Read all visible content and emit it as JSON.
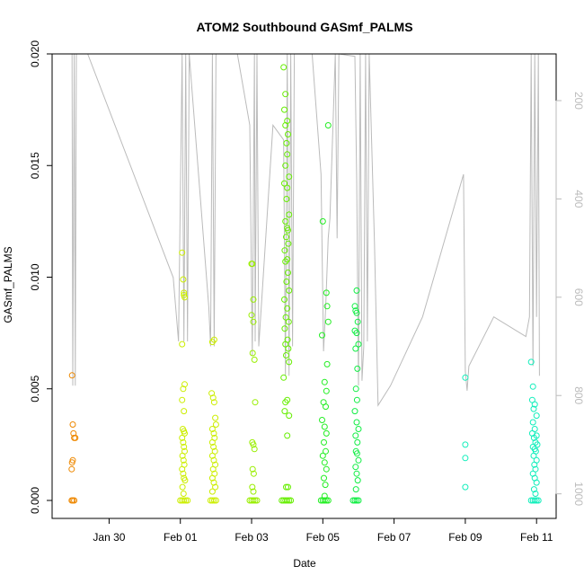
{
  "chart_data": {
    "type": "scatter",
    "title": "ATOM2 Southbound GASmf_PALMS",
    "xlabel": "Date",
    "ylabel": "GASmf_PALMS",
    "ylim": [
      0,
      0.02
    ],
    "y_ticks": [
      "0.000",
      "0.005",
      "0.010",
      "0.015",
      "0.020"
    ],
    "y_tick_values": [
      0,
      0.005,
      0.01,
      0.015,
      0.02
    ],
    "x_ticks": [
      "Jan 30",
      "Feb 01",
      "Feb 03",
      "Feb 05",
      "Feb 07",
      "Feb 09",
      "Feb 11"
    ],
    "x_tick_days": [
      30,
      32,
      34,
      36,
      38,
      40,
      42
    ],
    "xlim_days": [
      28.4,
      42.55
    ],
    "secondary_axis": {
      "ticks": [
        "200",
        "400",
        "600",
        "800",
        "1000"
      ],
      "tick_values": [
        200,
        400,
        600,
        800,
        1000
      ],
      "range": [
        105,
        1050
      ],
      "color": "#bbbbbb"
    },
    "grid": false,
    "legend": "none",
    "point_style": "open-circle",
    "pressure_trace": {
      "color": "#bbbbbb",
      "points": [
        [
          28.96,
          105
        ],
        [
          28.98,
          780
        ],
        [
          29.02,
          105
        ],
        [
          29.05,
          780
        ],
        [
          29.08,
          105
        ],
        [
          29.4,
          105
        ],
        [
          31.8,
          560
        ],
        [
          31.95,
          690
        ],
        [
          32.05,
          105
        ],
        [
          32.1,
          690
        ],
        [
          32.15,
          105
        ],
        [
          32.2,
          690
        ],
        [
          32.25,
          105
        ],
        [
          32.8,
          620
        ],
        [
          32.85,
          700
        ],
        [
          32.9,
          105
        ],
        [
          32.95,
          700
        ],
        [
          33.0,
          105
        ],
        [
          33.6,
          105
        ],
        [
          33.95,
          250
        ],
        [
          34.02,
          720
        ],
        [
          34.08,
          105
        ],
        [
          34.1,
          690
        ],
        [
          34.15,
          105
        ],
        [
          34.2,
          700
        ],
        [
          34.6,
          250
        ],
        [
          34.9,
          280
        ],
        [
          34.95,
          760
        ],
        [
          35.0,
          105
        ],
        [
          35.05,
          760
        ],
        [
          35.1,
          105
        ],
        [
          35.15,
          700
        ],
        [
          35.2,
          105
        ],
        [
          35.7,
          105
        ],
        [
          35.95,
          350
        ],
        [
          36.02,
          710
        ],
        [
          36.08,
          620
        ],
        [
          36.15,
          480
        ],
        [
          36.2,
          440
        ],
        [
          36.35,
          105
        ],
        [
          36.4,
          480
        ],
        [
          36.45,
          105
        ],
        [
          36.9,
          110
        ],
        [
          36.95,
          360
        ],
        [
          37.0,
          780
        ],
        [
          37.05,
          105
        ],
        [
          37.1,
          770
        ],
        [
          37.15,
          700
        ],
        [
          37.2,
          105
        ],
        [
          37.25,
          690
        ],
        [
          37.3,
          105
        ],
        [
          37.45,
          490
        ],
        [
          37.55,
          820
        ],
        [
          37.9,
          780
        ],
        [
          38.8,
          640
        ],
        [
          39.95,
          350
        ],
        [
          40.0,
          750
        ],
        [
          40.05,
          790
        ],
        [
          40.1,
          740
        ],
        [
          40.8,
          640
        ],
        [
          41.7,
          680
        ],
        [
          41.8,
          640
        ],
        [
          41.85,
          105
        ],
        [
          41.9,
          740
        ],
        [
          41.95,
          105
        ],
        [
          42.0,
          640
        ],
        [
          42.05,
          105
        ],
        [
          42.08,
          760
        ]
      ]
    },
    "series": [
      {
        "color": "#ee8800",
        "points": [
          [
            28.96,
            0.0056
          ],
          [
            28.98,
            0.0034
          ],
          [
            29.0,
            0.003
          ],
          [
            29.02,
            0.0028
          ],
          [
            29.05,
            0.0028
          ],
          [
            28.98,
            0.0018
          ],
          [
            28.96,
            0.0017
          ],
          [
            28.95,
            0.0014
          ],
          [
            28.95,
            0.0
          ],
          [
            28.98,
            0.0
          ],
          [
            29.02,
            0.0
          ]
        ]
      },
      {
        "color": "#ccee00",
        "points": [
          [
            32.05,
            0.0111
          ],
          [
            32.08,
            0.0099
          ],
          [
            32.1,
            0.0093
          ],
          [
            32.1,
            0.0092
          ],
          [
            32.12,
            0.0091
          ],
          [
            32.05,
            0.007
          ],
          [
            32.08,
            0.005
          ],
          [
            32.12,
            0.0052
          ],
          [
            32.05,
            0.0045
          ],
          [
            32.1,
            0.004
          ],
          [
            32.07,
            0.0032
          ],
          [
            32.1,
            0.0031
          ],
          [
            32.12,
            0.003
          ],
          [
            32.05,
            0.0028
          ],
          [
            32.08,
            0.0026
          ],
          [
            32.1,
            0.0024
          ],
          [
            32.12,
            0.0022
          ],
          [
            32.06,
            0.002
          ],
          [
            32.09,
            0.0018
          ],
          [
            32.11,
            0.0016
          ],
          [
            32.05,
            0.0014
          ],
          [
            32.08,
            0.0012
          ],
          [
            32.1,
            0.001
          ],
          [
            32.13,
            0.0009
          ],
          [
            32.06,
            0.0006
          ],
          [
            32.09,
            0.0003
          ],
          [
            32.0,
            0.0
          ],
          [
            32.05,
            0.0
          ],
          [
            32.1,
            0.0
          ],
          [
            32.15,
            0.0
          ],
          [
            32.2,
            0.0
          ],
          [
            32.9,
            0.0071
          ],
          [
            32.95,
            0.0072
          ],
          [
            32.88,
            0.0048
          ],
          [
            32.92,
            0.0046
          ],
          [
            32.95,
            0.0044
          ],
          [
            32.98,
            0.0037
          ],
          [
            33.0,
            0.0034
          ],
          [
            32.9,
            0.0032
          ],
          [
            32.94,
            0.003
          ],
          [
            32.96,
            0.0028
          ],
          [
            32.9,
            0.0026
          ],
          [
            32.93,
            0.0024
          ],
          [
            32.97,
            0.0022
          ],
          [
            32.9,
            0.002
          ],
          [
            32.94,
            0.0018
          ],
          [
            32.98,
            0.0016
          ],
          [
            32.92,
            0.0014
          ],
          [
            32.96,
            0.0012
          ],
          [
            32.9,
            0.001
          ],
          [
            32.94,
            0.0008
          ],
          [
            32.98,
            0.0006
          ],
          [
            32.9,
            0.0004
          ],
          [
            32.85,
            0.0
          ],
          [
            32.9,
            0.0
          ],
          [
            32.95,
            0.0
          ],
          [
            33.0,
            0.0
          ]
        ]
      },
      {
        "color": "#99ee00",
        "points": [
          [
            34.0,
            0.0106
          ],
          [
            34.02,
            0.0106
          ],
          [
            34.05,
            0.009
          ],
          [
            34.0,
            0.0083
          ],
          [
            34.05,
            0.008
          ],
          [
            34.03,
            0.0066
          ],
          [
            34.08,
            0.0063
          ],
          [
            34.1,
            0.0044
          ],
          [
            34.02,
            0.0026
          ],
          [
            34.05,
            0.0025
          ],
          [
            34.08,
            0.0023
          ],
          [
            34.03,
            0.0014
          ],
          [
            34.06,
            0.0012
          ],
          [
            34.02,
            0.0006
          ],
          [
            34.05,
            0.0004
          ],
          [
            33.95,
            0.0
          ],
          [
            34.0,
            0.0
          ],
          [
            34.05,
            0.0
          ],
          [
            34.1,
            0.0
          ],
          [
            34.15,
            0.0
          ]
        ]
      },
      {
        "color": "#66ee00",
        "points": [
          [
            34.9,
            0.0194
          ],
          [
            34.95,
            0.0182
          ],
          [
            34.92,
            0.0175
          ],
          [
            35.0,
            0.017
          ],
          [
            34.95,
            0.0168
          ],
          [
            35.02,
            0.0164
          ],
          [
            34.98,
            0.016
          ],
          [
            35.0,
            0.0155
          ],
          [
            34.95,
            0.015
          ],
          [
            35.05,
            0.0145
          ],
          [
            34.92,
            0.0142
          ],
          [
            35.0,
            0.014
          ],
          [
            34.98,
            0.0135
          ],
          [
            35.05,
            0.0128
          ],
          [
            34.95,
            0.0125
          ],
          [
            35.0,
            0.0122
          ],
          [
            35.02,
            0.0121
          ],
          [
            34.97,
            0.0118
          ],
          [
            35.03,
            0.0115
          ],
          [
            34.93,
            0.0112
          ],
          [
            35.0,
            0.0108
          ],
          [
            34.95,
            0.0107
          ],
          [
            35.02,
            0.0102
          ],
          [
            34.98,
            0.0098
          ],
          [
            35.05,
            0.0094
          ],
          [
            34.92,
            0.009
          ],
          [
            35.0,
            0.0086
          ],
          [
            34.96,
            0.0082
          ],
          [
            35.04,
            0.008
          ],
          [
            34.93,
            0.0077
          ],
          [
            35.01,
            0.0072
          ],
          [
            34.95,
            0.007
          ],
          [
            35.03,
            0.0068
          ],
          [
            34.97,
            0.0065
          ],
          [
            35.05,
            0.0062
          ],
          [
            34.9,
            0.0055
          ],
          [
            35.0,
            0.0045
          ],
          [
            34.95,
            0.0044
          ],
          [
            35.05,
            0.0038
          ],
          [
            34.93,
            0.004
          ],
          [
            35.0,
            0.0029
          ],
          [
            34.97,
            0.0006
          ],
          [
            35.02,
            0.0006
          ],
          [
            34.85,
            0.0
          ],
          [
            34.9,
            0.0
          ],
          [
            34.95,
            0.0
          ],
          [
            35.0,
            0.0
          ],
          [
            35.05,
            0.0
          ],
          [
            35.1,
            0.0
          ]
        ]
      },
      {
        "color": "#22ee22",
        "points": [
          [
            36.0,
            0.0125
          ],
          [
            36.15,
            0.0168
          ],
          [
            35.98,
            0.0074
          ],
          [
            36.05,
            0.0053
          ],
          [
            36.1,
            0.0049
          ],
          [
            36.02,
            0.0044
          ],
          [
            36.08,
            0.0042
          ],
          [
            35.98,
            0.0036
          ],
          [
            36.05,
            0.0033
          ],
          [
            36.1,
            0.003
          ],
          [
            36.03,
            0.0026
          ],
          [
            36.08,
            0.0022
          ],
          [
            36.0,
            0.002
          ],
          [
            36.05,
            0.0017
          ],
          [
            36.1,
            0.0014
          ],
          [
            36.03,
            0.001
          ],
          [
            36.07,
            0.0007
          ],
          [
            36.05,
            0.0002
          ],
          [
            36.1,
            0.0093
          ],
          [
            36.12,
            0.0087
          ],
          [
            36.15,
            0.008
          ],
          [
            36.12,
            0.0061
          ],
          [
            35.95,
            0.0
          ],
          [
            36.0,
            0.0
          ],
          [
            36.05,
            0.0
          ],
          [
            36.1,
            0.0
          ],
          [
            36.15,
            0.0
          ]
        ]
      },
      {
        "color": "#11ee44",
        "points": [
          [
            36.95,
            0.0094
          ],
          [
            36.9,
            0.0087
          ],
          [
            36.92,
            0.0085
          ],
          [
            36.95,
            0.0084
          ],
          [
            36.98,
            0.008
          ],
          [
            36.9,
            0.0076
          ],
          [
            36.95,
            0.0075
          ],
          [
            37.0,
            0.007
          ],
          [
            36.92,
            0.0068
          ],
          [
            36.97,
            0.0059
          ],
          [
            36.93,
            0.005
          ],
          [
            36.96,
            0.0045
          ],
          [
            36.9,
            0.004
          ],
          [
            36.95,
            0.0035
          ],
          [
            37.0,
            0.0032
          ],
          [
            36.92,
            0.0029
          ],
          [
            36.97,
            0.0026
          ],
          [
            36.93,
            0.0022
          ],
          [
            36.96,
            0.0021
          ],
          [
            37.0,
            0.0018
          ],
          [
            36.92,
            0.0015
          ],
          [
            36.95,
            0.0012
          ],
          [
            36.98,
            0.0009
          ],
          [
            36.93,
            0.0005
          ],
          [
            36.85,
            0.0
          ],
          [
            36.9,
            0.0
          ],
          [
            36.95,
            0.0
          ],
          [
            37.0,
            0.0
          ]
        ]
      },
      {
        "color": "#11eebb",
        "points": [
          [
            40.0,
            0.0055
          ],
          [
            40.0,
            0.0025
          ],
          [
            40.0,
            0.0019
          ],
          [
            40.0,
            0.0006
          ],
          [
            41.85,
            0.0062
          ],
          [
            41.9,
            0.0051
          ],
          [
            41.88,
            0.0045
          ],
          [
            41.95,
            0.0043
          ],
          [
            41.92,
            0.0041
          ],
          [
            42.0,
            0.0038
          ],
          [
            41.9,
            0.0035
          ],
          [
            41.95,
            0.0032
          ],
          [
            41.88,
            0.003
          ],
          [
            42.0,
            0.0029
          ],
          [
            41.93,
            0.0028
          ],
          [
            41.97,
            0.0026
          ],
          [
            42.02,
            0.0025
          ],
          [
            41.9,
            0.0024
          ],
          [
            41.95,
            0.0023
          ],
          [
            41.98,
            0.0022
          ],
          [
            41.92,
            0.002
          ],
          [
            42.0,
            0.0018
          ],
          [
            41.94,
            0.0016
          ],
          [
            41.97,
            0.0014
          ],
          [
            41.9,
            0.0012
          ],
          [
            41.95,
            0.001
          ],
          [
            42.0,
            0.0008
          ],
          [
            41.93,
            0.0005
          ],
          [
            41.97,
            0.0003
          ],
          [
            41.85,
            0.0
          ],
          [
            41.9,
            0.0
          ],
          [
            41.95,
            0.0
          ],
          [
            42.0,
            0.0
          ],
          [
            42.05,
            0.0
          ]
        ]
      }
    ]
  }
}
